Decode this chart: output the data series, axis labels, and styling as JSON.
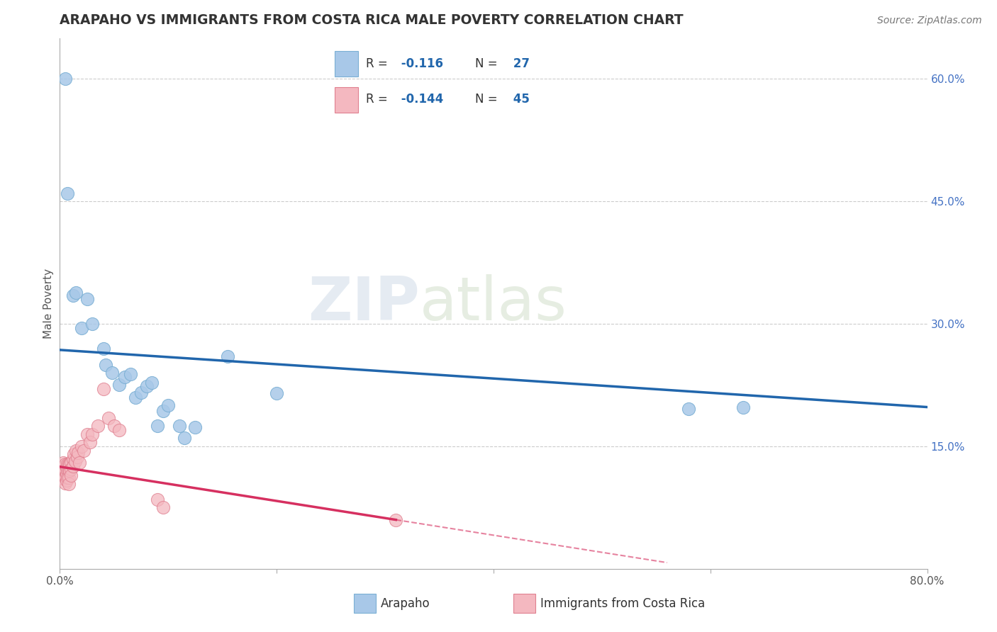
{
  "title": "ARAPAHO VS IMMIGRANTS FROM COSTA RICA MALE POVERTY CORRELATION CHART",
  "source": "Source: ZipAtlas.com",
  "ylabel": "Male Poverty",
  "xlim": [
    0.0,
    0.8
  ],
  "ylim": [
    0.0,
    0.65
  ],
  "xticks": [
    0.0,
    0.2,
    0.4,
    0.6,
    0.8
  ],
  "xticklabels": [
    "0.0%",
    "",
    "",
    "",
    "80.0%"
  ],
  "yticks_right": [
    0.15,
    0.3,
    0.45,
    0.6
  ],
  "ytick_right_labels": [
    "15.0%",
    "30.0%",
    "45.0%",
    "60.0%"
  ],
  "grid_color": "#cccccc",
  "background_color": "#ffffff",
  "arapaho_color": "#a8c8e8",
  "arapaho_edge": "#7aafd4",
  "immigrants_color": "#f4b8c0",
  "immigrants_edge": "#e08090",
  "arapaho_R": -0.116,
  "arapaho_N": 27,
  "immigrants_R": -0.144,
  "immigrants_N": 45,
  "arapaho_x": [
    0.005,
    0.007,
    0.012,
    0.015,
    0.02,
    0.025,
    0.03,
    0.04,
    0.042,
    0.048,
    0.055,
    0.06,
    0.065,
    0.07,
    0.075,
    0.08,
    0.085,
    0.09,
    0.095,
    0.1,
    0.11,
    0.115,
    0.125,
    0.155,
    0.2,
    0.58,
    0.63
  ],
  "arapaho_y": [
    0.6,
    0.46,
    0.335,
    0.338,
    0.295,
    0.33,
    0.3,
    0.27,
    0.25,
    0.24,
    0.225,
    0.235,
    0.238,
    0.21,
    0.216,
    0.224,
    0.228,
    0.175,
    0.193,
    0.2,
    0.175,
    0.16,
    0.173,
    0.26,
    0.215,
    0.196,
    0.198
  ],
  "immigrants_x": [
    0.002,
    0.003,
    0.003,
    0.004,
    0.004,
    0.005,
    0.005,
    0.005,
    0.005,
    0.006,
    0.006,
    0.006,
    0.007,
    0.007,
    0.007,
    0.008,
    0.008,
    0.008,
    0.008,
    0.009,
    0.009,
    0.01,
    0.01,
    0.01,
    0.012,
    0.012,
    0.013,
    0.014,
    0.015,
    0.016,
    0.017,
    0.018,
    0.02,
    0.022,
    0.025,
    0.028,
    0.03,
    0.035,
    0.04,
    0.045,
    0.05,
    0.055,
    0.09,
    0.095,
    0.31
  ],
  "immigrants_y": [
    0.12,
    0.13,
    0.118,
    0.125,
    0.11,
    0.128,
    0.12,
    0.112,
    0.105,
    0.124,
    0.116,
    0.108,
    0.128,
    0.12,
    0.112,
    0.128,
    0.12,
    0.112,
    0.104,
    0.128,
    0.12,
    0.13,
    0.122,
    0.114,
    0.134,
    0.126,
    0.14,
    0.132,
    0.145,
    0.137,
    0.142,
    0.13,
    0.15,
    0.145,
    0.165,
    0.155,
    0.165,
    0.175,
    0.22,
    0.185,
    0.175,
    0.17,
    0.085,
    0.075,
    0.06
  ],
  "legend_label1": "Arapaho",
  "legend_label2": "Immigrants from Costa Rica",
  "arapaho_line_color": "#2166ac",
  "immigrants_line_color": "#d63060",
  "legend_R_color": "#2166ac",
  "legend_text_color": "#333333"
}
